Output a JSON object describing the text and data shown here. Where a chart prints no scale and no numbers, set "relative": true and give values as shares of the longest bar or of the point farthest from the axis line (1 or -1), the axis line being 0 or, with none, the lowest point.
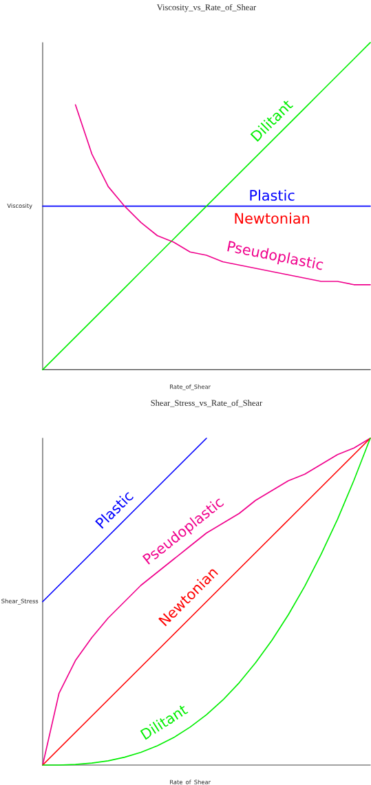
{
  "chart_data": [
    {
      "type": "line",
      "title": "Viscosity_vs_Rate_of_Shear",
      "xlabel": "Rate_of_Shear",
      "ylabel": "Viscosity",
      "relative": true,
      "legend": false,
      "grid": false,
      "categories": [
        null,
        null,
        null,
        null,
        null,
        null,
        null,
        null,
        null,
        null,
        null,
        null,
        null,
        null,
        null,
        null,
        null,
        null,
        null,
        null,
        null
      ],
      "series": [
        {
          "name": "Plastic",
          "color": "#0000ff",
          "values": [
            0.5,
            0.5,
            0.5,
            0.5,
            0.5,
            0.5,
            0.5,
            0.5,
            0.5,
            0.5,
            0.5,
            0.5,
            0.5,
            0.5,
            0.5,
            0.5,
            0.5,
            0.5,
            0.5,
            0.5,
            0.5
          ]
        },
        {
          "name": "Newtonian",
          "color": "#ff0000",
          "values": [
            null,
            null,
            null,
            null,
            null,
            null,
            null,
            null,
            null,
            null,
            null,
            null,
            null,
            null,
            null,
            null,
            null,
            null,
            null,
            null,
            null
          ]
        },
        {
          "name": "Dilitant",
          "color": "#00ee00",
          "values": [
            0,
            0.05,
            0.1,
            0.15,
            0.2,
            0.25,
            0.3,
            0.35,
            0.4,
            0.45,
            0.5,
            0.55,
            0.6,
            0.65,
            0.7,
            0.75,
            0.8,
            0.85,
            0.9,
            0.95,
            1
          ]
        },
        {
          "name": "Pseudoplastic",
          "color": "#f0008c",
          "values": [
            null,
            null,
            0.81,
            0.66,
            0.56,
            0.5,
            0.45,
            0.41,
            0.39,
            0.36,
            0.35,
            0.33,
            0.32,
            0.31,
            0.3,
            0.29,
            0.28,
            0.27,
            0.27,
            0.26,
            0.26
          ]
        }
      ]
    },
    {
      "type": "line",
      "title": "Shear_Stress_vs_Rate_of_Shear",
      "xlabel": "Rate_of_Shear",
      "ylabel": "Shear_Stress",
      "relative": true,
      "legend": false,
      "grid": false,
      "categories": [
        null,
        null,
        null,
        null,
        null,
        null,
        null,
        null,
        null,
        null,
        null,
        null,
        null,
        null,
        null,
        null,
        null,
        null,
        null,
        null,
        null
      ],
      "series": [
        {
          "name": "Plastic",
          "color": "#0000ff",
          "values": [
            0.5,
            0.55,
            0.6,
            0.65,
            0.7,
            0.75,
            0.8,
            0.85,
            0.9,
            0.95,
            1,
            null,
            null,
            null,
            null,
            null,
            null,
            null,
            null,
            null,
            null
          ]
        },
        {
          "name": "Pseudoplastic",
          "color": "#f0008c",
          "values": [
            0,
            0.22,
            0.32,
            0.39,
            0.45,
            0.5,
            0.55,
            0.59,
            0.63,
            0.67,
            0.71,
            0.74,
            0.77,
            0.81,
            0.84,
            0.87,
            0.89,
            0.92,
            0.95,
            0.97,
            1
          ]
        },
        {
          "name": "Newtonian",
          "color": "#ff0000",
          "values": [
            0,
            0.05,
            0.1,
            0.15,
            0.2,
            0.25,
            0.3,
            0.35,
            0.4,
            0.45,
            0.5,
            0.55,
            0.6,
            0.65,
            0.7,
            0.75,
            0.8,
            0.85,
            0.9,
            0.95,
            1
          ]
        },
        {
          "name": "Dilitant",
          "color": "#00ee00",
          "values": [
            0,
            0,
            0.002,
            0.006,
            0.013,
            0.024,
            0.039,
            0.059,
            0.084,
            0.116,
            0.154,
            0.199,
            0.252,
            0.313,
            0.382,
            0.46,
            0.547,
            0.645,
            0.752,
            0.871,
            1
          ]
        }
      ]
    }
  ]
}
